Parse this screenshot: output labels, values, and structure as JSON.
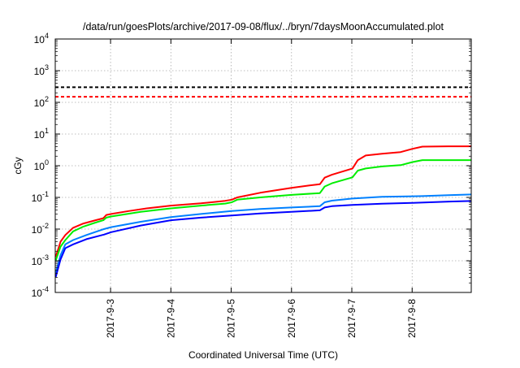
{
  "chart_data": {
    "type": "line",
    "title": "/data/run/goesPlots/archive/2017-09-08/flux/../bryn/7daysMoonAccumulated.plot",
    "xlabel": "Coordinated Universal Time (UTC)",
    "ylabel": "cGy",
    "x_units": "day of September 2017",
    "xlim": [
      2.083,
      8.98
    ],
    "ylim": [
      0.0001,
      10000
    ],
    "yscale": "log",
    "grid": true,
    "x_ticks": [
      {
        "value": 3,
        "label": "2017-9-3"
      },
      {
        "value": 4,
        "label": "2017-9-4"
      },
      {
        "value": 5,
        "label": "2017-9-5"
      },
      {
        "value": 6,
        "label": "2017-9-6"
      },
      {
        "value": 7,
        "label": "2017-9-7"
      },
      {
        "value": 8,
        "label": "2017-9-8"
      }
    ],
    "y_ticks": [
      {
        "value": 0.0001,
        "base": "10",
        "exp": "-4"
      },
      {
        "value": 0.001,
        "base": "10",
        "exp": "-3"
      },
      {
        "value": 0.01,
        "base": "10",
        "exp": "-2"
      },
      {
        "value": 0.1,
        "base": "10",
        "exp": "-1"
      },
      {
        "value": 1,
        "base": "10",
        "exp": "0"
      },
      {
        "value": 10,
        "base": "10",
        "exp": "1"
      },
      {
        "value": 100,
        "base": "10",
        "exp": "2"
      },
      {
        "value": 1000,
        "base": "10",
        "exp": "3"
      },
      {
        "value": 10000,
        "base": "10",
        "exp": "4"
      }
    ],
    "thresholds": [
      {
        "value": 300,
        "color": "#000000"
      },
      {
        "value": 150,
        "color": "#ff0000"
      }
    ],
    "series": [
      {
        "name": "red",
        "color": "#ff0000",
        "x": [
          2.09,
          2.17,
          2.25,
          2.38,
          2.55,
          2.75,
          2.88,
          2.93,
          3.01,
          3.3,
          3.6,
          4.0,
          4.5,
          4.9,
          5.01,
          5.1,
          5.48,
          6.0,
          6.3,
          6.47,
          6.55,
          6.67,
          7.01,
          7.1,
          7.23,
          7.5,
          7.81,
          8.0,
          8.17,
          8.6,
          8.98
        ],
        "y": [
          0.0013,
          0.004,
          0.0065,
          0.011,
          0.015,
          0.019,
          0.022,
          0.028,
          0.03,
          0.037,
          0.045,
          0.055,
          0.065,
          0.078,
          0.085,
          0.1,
          0.14,
          0.2,
          0.24,
          0.26,
          0.42,
          0.52,
          0.82,
          1.5,
          2.1,
          2.4,
          2.7,
          3.4,
          4.0,
          4.1,
          4.1
        ]
      },
      {
        "name": "green",
        "color": "#00ee00",
        "x": [
          2.09,
          2.17,
          2.25,
          2.38,
          2.55,
          2.75,
          2.88,
          2.93,
          3.01,
          3.5,
          4.0,
          4.5,
          4.9,
          5.01,
          5.1,
          5.48,
          6.0,
          6.47,
          6.55,
          6.67,
          7.01,
          7.1,
          7.23,
          7.5,
          7.81,
          8.0,
          8.17,
          8.6,
          8.98
        ],
        "y": [
          0.001,
          0.0028,
          0.0045,
          0.0085,
          0.012,
          0.016,
          0.019,
          0.023,
          0.025,
          0.035,
          0.045,
          0.055,
          0.064,
          0.07,
          0.085,
          0.1,
          0.12,
          0.137,
          0.22,
          0.28,
          0.43,
          0.7,
          0.82,
          0.95,
          1.04,
          1.3,
          1.5,
          1.5,
          1.5
        ]
      },
      {
        "name": "light-blue",
        "color": "#0080ff",
        "x": [
          2.09,
          2.17,
          2.25,
          2.38,
          2.6,
          2.89,
          3.01,
          3.5,
          4.0,
          4.5,
          5.01,
          5.48,
          6.0,
          6.47,
          6.55,
          6.67,
          7.01,
          7.5,
          8.17,
          8.6,
          8.98
        ],
        "y": [
          0.0004,
          0.0015,
          0.0033,
          0.0045,
          0.0065,
          0.01,
          0.0115,
          0.017,
          0.024,
          0.03,
          0.037,
          0.043,
          0.048,
          0.053,
          0.07,
          0.079,
          0.092,
          0.104,
          0.11,
          0.117,
          0.124
        ]
      },
      {
        "name": "dark-blue",
        "color": "#0000ff",
        "x": [
          2.09,
          2.17,
          2.25,
          2.38,
          2.6,
          2.89,
          3.01,
          3.5,
          4.0,
          4.5,
          5.01,
          5.48,
          6.0,
          6.47,
          6.55,
          6.67,
          7.01,
          7.5,
          8.0,
          8.62,
          8.98
        ],
        "y": [
          0.0003,
          0.0011,
          0.0025,
          0.0033,
          0.0048,
          0.0067,
          0.008,
          0.013,
          0.019,
          0.023,
          0.027,
          0.031,
          0.035,
          0.039,
          0.048,
          0.053,
          0.058,
          0.063,
          0.067,
          0.074,
          0.077
        ]
      }
    ]
  }
}
